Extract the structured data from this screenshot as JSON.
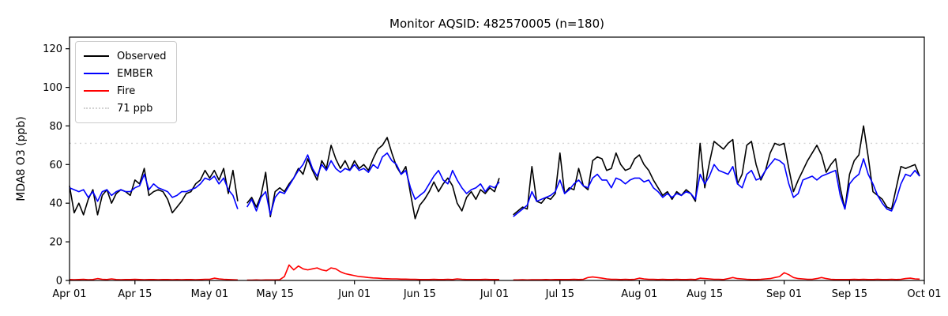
{
  "figure": {
    "title": "Monitor AQSID: 482570005 (n=180)"
  },
  "legend": {
    "items": [
      {
        "label": "Observed",
        "color": "#000000",
        "style": "solid"
      },
      {
        "label": "EMBER",
        "color": "#0000ff",
        "style": "solid"
      },
      {
        "label": "Fire",
        "color": "#ff0000",
        "style": "solid"
      },
      {
        "label": "71 ppb",
        "color": "#d3d3d3",
        "style": "dotted"
      }
    ]
  },
  "chart_data": {
    "type": "line",
    "title": "Monitor AQSID: 482570005 (n=180)",
    "xlabel": "",
    "ylabel": "MDA8 O3 (ppb)",
    "ylim": [
      0,
      126
    ],
    "y_ticks": [
      0,
      20,
      40,
      60,
      80,
      100,
      120
    ],
    "x_range_days": 183,
    "x_start_date": "Apr 01",
    "x_end_date": "Oct 01",
    "grid": false,
    "legend_position": "upper-left",
    "n_points": 180,
    "x_ticks": [
      {
        "day": 0,
        "label": "Apr 01"
      },
      {
        "day": 14,
        "label": "Apr 15"
      },
      {
        "day": 30,
        "label": "May 01"
      },
      {
        "day": 44,
        "label": "May 15"
      },
      {
        "day": 61,
        "label": "Jun 01"
      },
      {
        "day": 75,
        "label": "Jun 15"
      },
      {
        "day": 91,
        "label": "Jul 01"
      },
      {
        "day": 105,
        "label": "Jul 15"
      },
      {
        "day": 122,
        "label": "Aug 01"
      },
      {
        "day": 136,
        "label": "Aug 15"
      },
      {
        "day": 153,
        "label": "Sep 01"
      },
      {
        "day": 167,
        "label": "Sep 15"
      },
      {
        "day": 183,
        "label": "Oct 01"
      }
    ],
    "ref_line": {
      "label": "71 ppb",
      "value": 71,
      "color": "#d3d3d3",
      "style": "dotted"
    },
    "series": [
      {
        "name": "Observed",
        "color": "#000000",
        "style": "solid",
        "values": [
          49,
          35,
          40,
          34,
          42,
          47,
          34,
          44,
          47,
          40,
          45,
          47,
          46,
          44,
          52,
          50,
          58,
          44,
          46,
          47,
          46,
          42,
          35,
          38,
          41,
          45,
          46,
          50,
          52,
          57,
          53,
          57,
          52,
          58,
          45,
          57,
          41,
          null,
          40,
          43,
          38,
          44,
          56,
          33,
          46,
          48,
          46,
          50,
          53,
          58,
          55,
          63,
          57,
          52,
          62,
          58,
          70,
          63,
          58,
          62,
          57,
          62,
          58,
          60,
          57,
          63,
          68,
          70,
          74,
          66,
          59,
          55,
          59,
          45,
          32,
          39,
          42,
          46,
          51,
          46,
          50,
          53,
          49,
          40,
          36,
          43,
          46,
          42,
          47,
          45,
          48,
          46,
          53,
          null,
          null,
          34,
          36,
          38,
          37,
          59,
          41,
          40,
          43,
          42,
          45,
          66,
          45,
          48,
          47,
          58,
          49,
          47,
          62,
          64,
          63,
          57,
          58,
          66,
          60,
          57,
          58,
          63,
          65,
          60,
          57,
          52,
          48,
          44,
          46,
          42,
          46,
          44,
          47,
          45,
          41,
          71,
          48,
          61,
          72,
          70,
          68,
          71,
          73,
          50,
          55,
          70,
          72,
          60,
          52,
          57,
          66,
          71,
          70,
          71,
          58,
          46,
          52,
          57,
          62,
          66,
          70,
          65,
          56,
          60,
          63,
          48,
          37,
          55,
          62,
          65,
          80,
          64,
          46,
          44,
          42,
          38,
          37,
          48,
          59,
          58,
          59,
          60,
          54
        ]
      },
      {
        "name": "EMBER",
        "color": "#0000ff",
        "style": "solid",
        "values": [
          48,
          47,
          46,
          47,
          43,
          46,
          41,
          46,
          47,
          44,
          46,
          47,
          46,
          46,
          48,
          49,
          55,
          47,
          50,
          48,
          47,
          46,
          43,
          44,
          46,
          46,
          47,
          48,
          50,
          53,
          52,
          54,
          50,
          53,
          47,
          44,
          37,
          null,
          38,
          42,
          36,
          43,
          46,
          34,
          43,
          46,
          45,
          49,
          53,
          57,
          60,
          65,
          58,
          54,
          60,
          57,
          62,
          58,
          56,
          58,
          57,
          60,
          57,
          58,
          56,
          60,
          58,
          64,
          66,
          62,
          60,
          55,
          57,
          48,
          42,
          44,
          46,
          50,
          54,
          57,
          52,
          50,
          57,
          52,
          48,
          45,
          47,
          48,
          50,
          46,
          49,
          48,
          51,
          null,
          null,
          33,
          35,
          37,
          39,
          46,
          41,
          42,
          43,
          44,
          46,
          52,
          45,
          47,
          50,
          52,
          49,
          48,
          53,
          55,
          52,
          52,
          48,
          53,
          52,
          50,
          52,
          53,
          53,
          51,
          52,
          48,
          46,
          43,
          45,
          43,
          45,
          44,
          46,
          45,
          42,
          55,
          50,
          54,
          60,
          57,
          56,
          55,
          59,
          50,
          48,
          55,
          57,
          52,
          53,
          57,
          60,
          63,
          62,
          60,
          50,
          43,
          45,
          52,
          53,
          54,
          52,
          54,
          55,
          56,
          57,
          44,
          37,
          50,
          53,
          55,
          63,
          55,
          50,
          44,
          40,
          37,
          36,
          42,
          50,
          55,
          54,
          57,
          54
        ]
      },
      {
        "name": "Fire",
        "color": "#ff0000",
        "style": "solid",
        "values": [
          0.5,
          0.4,
          0.5,
          0.6,
          0.4,
          0.5,
          1.0,
          0.6,
          0.5,
          0.8,
          0.5,
          0.4,
          0.5,
          0.5,
          0.6,
          0.5,
          0.4,
          0.5,
          0.5,
          0.4,
          0.5,
          0.5,
          0.4,
          0.5,
          0.4,
          0.5,
          0.5,
          0.4,
          0.5,
          0.6,
          0.6,
          1.2,
          0.8,
          0.6,
          0.5,
          0.4,
          0.3,
          null,
          0.2,
          0.2,
          0.3,
          0.2,
          0.3,
          0.3,
          0.3,
          0.4,
          2.0,
          8.0,
          5.5,
          7.5,
          6.0,
          5.5,
          6.0,
          6.5,
          5.5,
          5.0,
          6.5,
          6.0,
          4.5,
          3.5,
          3.0,
          2.5,
          2.0,
          1.8,
          1.5,
          1.3,
          1.2,
          1.0,
          0.9,
          0.8,
          0.8,
          0.7,
          0.7,
          0.6,
          0.6,
          0.5,
          0.5,
          0.5,
          0.6,
          0.5,
          0.5,
          0.6,
          0.5,
          0.8,
          0.6,
          0.5,
          0.5,
          0.5,
          0.5,
          0.6,
          0.5,
          0.5,
          0.5,
          null,
          null,
          0.3,
          0.3,
          0.4,
          0.3,
          0.4,
          0.4,
          0.4,
          0.5,
          0.4,
          0.5,
          0.5,
          0.5,
          0.5,
          0.6,
          0.5,
          0.6,
          1.5,
          1.8,
          1.5,
          1.2,
          0.8,
          0.6,
          0.6,
          0.5,
          0.6,
          0.5,
          0.6,
          1.2,
          0.8,
          0.6,
          0.6,
          0.5,
          0.6,
          0.5,
          0.5,
          0.6,
          0.5,
          0.5,
          0.6,
          0.5,
          1.2,
          1.0,
          0.8,
          0.6,
          0.6,
          0.5,
          1.0,
          1.5,
          1.0,
          0.8,
          0.6,
          0.5,
          0.5,
          0.6,
          0.8,
          1.0,
          1.5,
          2.0,
          4.0,
          3.0,
          1.5,
          1.0,
          0.8,
          0.6,
          0.6,
          1.0,
          1.5,
          1.0,
          0.6,
          0.5,
          0.5,
          0.5,
          0.5,
          0.6,
          0.5,
          0.6,
          0.5,
          0.5,
          0.6,
          0.5,
          0.5,
          0.6,
          0.5,
          0.6,
          1.0,
          1.2,
          0.8,
          0.7
        ]
      }
    ]
  }
}
